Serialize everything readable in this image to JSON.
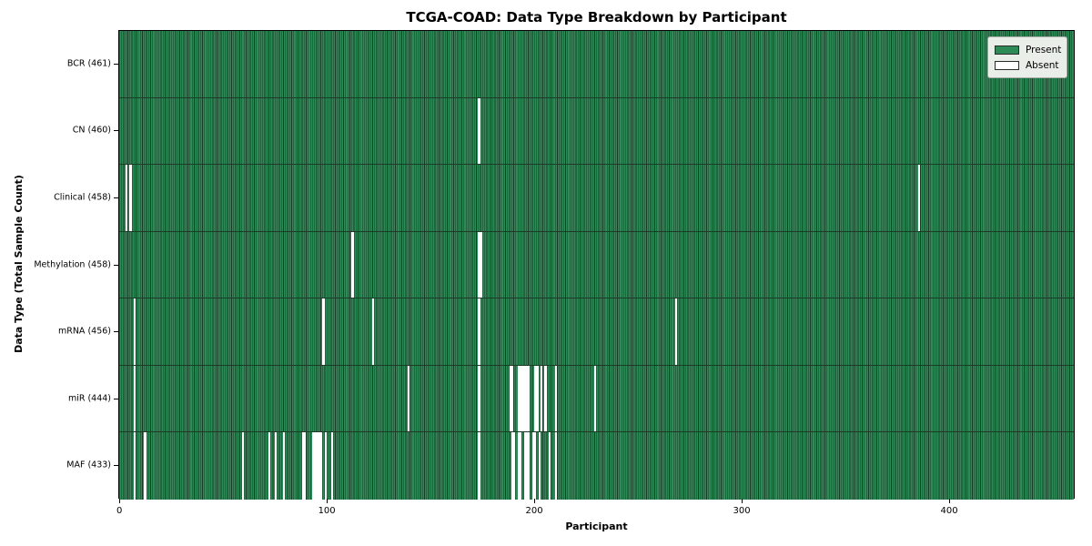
{
  "title": "TCGA-COAD: Data Type Breakdown by Participant",
  "axes": {
    "xlabel": "Participant",
    "ylabel": "Data Type (Total Sample Count)",
    "x_ticks": [
      0,
      100,
      200,
      300,
      400
    ]
  },
  "legend": {
    "items": [
      {
        "label": "Present",
        "color": "#2e8b57"
      },
      {
        "label": "Absent",
        "color": "#ffffff"
      }
    ]
  },
  "colors": {
    "present": "#2e8b57",
    "bar_edge": "#143c26",
    "absent": "#ffffff",
    "row_divider": "#1b3b27",
    "plot_border": "#000000",
    "legend_bg": "#e9eee8",
    "legend_border": "#a8aca8"
  },
  "chart_data": {
    "type": "heatmap",
    "title": "TCGA-COAD: Data Type Breakdown by Participant",
    "xlabel": "Participant",
    "ylabel": "Data Type (Total Sample Count)",
    "legend_entries": [
      "Present",
      "Absent"
    ],
    "legend_position": "upper right",
    "grid": false,
    "total_participants": 461,
    "x_axis_range": [
      0,
      460
    ],
    "x_tick_values": [
      0,
      100,
      200,
      300,
      400
    ],
    "value_encoding": {
      "present": 1,
      "absent": 0
    },
    "rows": [
      {
        "label": "BCR (461)",
        "data_type": "BCR",
        "present_count": 461,
        "absent_count": 0,
        "absent_participants": []
      },
      {
        "label": "CN (460)",
        "data_type": "CN",
        "present_count": 460,
        "absent_count": 1,
        "absent_participants": [
          173
        ]
      },
      {
        "label": "Clinical (458)",
        "data_type": "Clinical",
        "present_count": 458,
        "absent_count": 3,
        "absent_participants": [
          3,
          5,
          385
        ]
      },
      {
        "label": "Methylation (458)",
        "data_type": "Methylation",
        "present_count": 458,
        "absent_count": 3,
        "absent_participants": [
          112,
          173,
          174
        ]
      },
      {
        "label": "mRNA (456)",
        "data_type": "mRNA",
        "present_count": 456,
        "absent_count": 5,
        "absent_participants": [
          7,
          98,
          122,
          173,
          268
        ]
      },
      {
        "label": "miR (444)",
        "data_type": "miR",
        "present_count": 444,
        "absent_count": 17,
        "absent_participants": [
          7,
          139,
          173,
          188,
          189,
          192,
          193,
          194,
          195,
          196,
          197,
          200,
          201,
          203,
          205,
          210,
          229
        ]
      },
      {
        "label": "MAF (433)",
        "data_type": "MAF",
        "present_count": 433,
        "absent_count": 28,
        "absent_participants": [
          7,
          12,
          59,
          72,
          75,
          79,
          88,
          89,
          93,
          94,
          95,
          96,
          97,
          99,
          102,
          173,
          189,
          190,
          192,
          193,
          195,
          196,
          197,
          199,
          200,
          202,
          207,
          210
        ]
      }
    ]
  }
}
